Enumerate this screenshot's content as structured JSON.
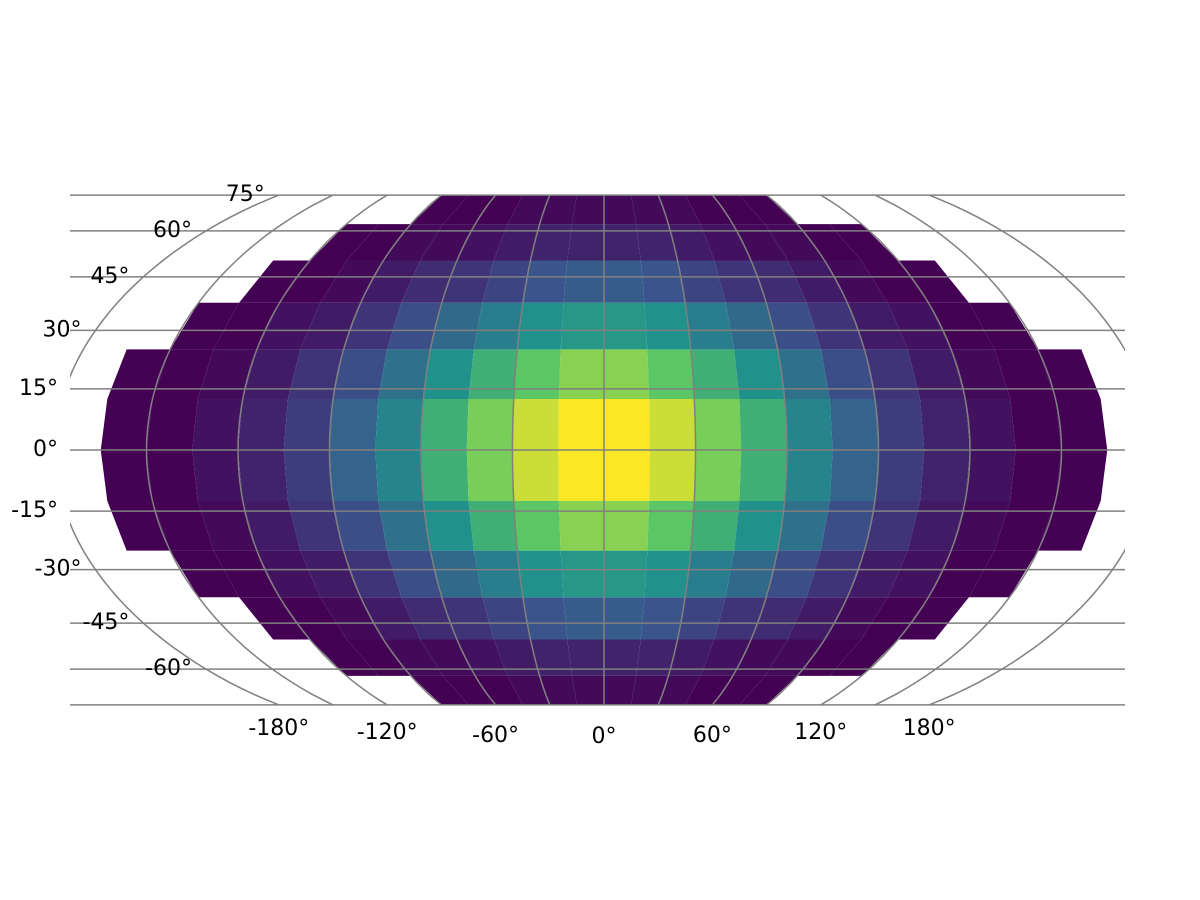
{
  "chart_data": {
    "type": "hist2d",
    "xticks": [
      {
        "value": -180,
        "label": "-180°"
      },
      {
        "value": -120,
        "label": "-120°"
      },
      {
        "value": -60,
        "label": "-60°"
      },
      {
        "value": 0,
        "label": "0°"
      },
      {
        "value": 60,
        "label": "60°"
      },
      {
        "value": 120,
        "label": "120°"
      },
      {
        "value": 180,
        "label": "180°"
      }
    ],
    "yticks": [
      {
        "value": -60,
        "label": "-60°"
      },
      {
        "value": -45,
        "label": "-45°"
      },
      {
        "value": -30,
        "label": "-30°"
      },
      {
        "value": -15,
        "label": "-15°"
      },
      {
        "value": 0,
        "label": "0°"
      },
      {
        "value": 15,
        "label": "15°"
      },
      {
        "value": 30,
        "label": "30°"
      },
      {
        "value": 45,
        "label": "45°"
      },
      {
        "value": 60,
        "label": "60°"
      },
      {
        "value": 75,
        "label": "75°"
      }
    ],
    "meridians": [
      -180,
      -150,
      -120,
      -90,
      -60,
      -30,
      0,
      30,
      60,
      90,
      120,
      150,
      180
    ],
    "ylim": [
      -75,
      75
    ],
    "grid": true,
    "grid_color": "#808080",
    "colormap": [
      "#440154",
      "#3b528b",
      "#21918c",
      "#5ec962",
      "#fde725"
    ],
    "clim": [
      1,
      39
    ],
    "lon_edges": [
      -180,
      -165,
      -150,
      -135,
      -120,
      -105,
      -90,
      -75,
      -60,
      -45,
      -30,
      -15,
      0,
      15,
      30,
      45,
      60,
      75,
      90,
      105,
      120,
      135,
      150,
      165,
      180
    ],
    "lat_edges": [
      -75,
      -62.5,
      -50,
      -37.5,
      -25,
      -12.5,
      0,
      12.5,
      25,
      37.5,
      50,
      62.5,
      75
    ],
    "counts": [
      [
        0,
        0,
        0,
        0,
        0,
        0,
        1,
        1,
        1,
        2,
        2,
        2,
        2,
        2,
        2,
        1,
        1,
        1,
        0,
        0,
        0,
        0,
        0,
        0
      ],
      [
        0,
        0,
        0,
        0,
        1,
        1,
        2,
        2,
        3,
        4,
        5,
        5,
        5,
        5,
        4,
        3,
        2,
        2,
        1,
        1,
        0,
        0,
        0,
        0
      ],
      [
        0,
        0,
        0,
        1,
        1,
        2,
        4,
        6,
        7,
        9,
        11,
        12,
        12,
        11,
        9,
        7,
        6,
        4,
        2,
        1,
        1,
        0,
        0,
        0
      ],
      [
        0,
        0,
        1,
        1,
        3,
        4,
        7,
        10,
        14,
        17,
        20,
        21,
        21,
        20,
        17,
        14,
        10,
        7,
        4,
        3,
        1,
        1,
        0,
        0
      ],
      [
        0,
        1,
        1,
        2,
        4,
        7,
        10,
        15,
        20,
        25,
        29,
        32,
        32,
        29,
        25,
        20,
        15,
        10,
        7,
        4,
        2,
        1,
        1,
        0
      ],
      [
        0,
        1,
        1,
        3,
        5,
        8,
        13,
        18,
        25,
        31,
        36,
        39,
        39,
        36,
        31,
        25,
        18,
        13,
        8,
        5,
        3,
        1,
        1,
        0
      ],
      [
        0,
        1,
        1,
        3,
        5,
        8,
        13,
        18,
        25,
        31,
        36,
        39,
        39,
        36,
        31,
        25,
        18,
        13,
        8,
        5,
        3,
        1,
        1,
        0
      ],
      [
        0,
        1,
        1,
        2,
        4,
        7,
        10,
        15,
        20,
        25,
        29,
        32,
        32,
        29,
        25,
        20,
        15,
        10,
        7,
        4,
        2,
        1,
        1,
        0
      ],
      [
        0,
        0,
        1,
        1,
        3,
        4,
        7,
        10,
        14,
        17,
        20,
        21,
        21,
        20,
        17,
        14,
        10,
        7,
        4,
        3,
        1,
        1,
        0,
        0
      ],
      [
        0,
        0,
        0,
        1,
        1,
        2,
        4,
        6,
        7,
        9,
        11,
        12,
        12,
        11,
        9,
        7,
        6,
        4,
        2,
        1,
        1,
        0,
        0,
        0
      ],
      [
        0,
        0,
        0,
        0,
        1,
        1,
        2,
        2,
        3,
        4,
        5,
        5,
        5,
        5,
        4,
        3,
        2,
        2,
        1,
        1,
        0,
        0,
        0,
        0
      ],
      [
        0,
        0,
        0,
        0,
        0,
        0,
        1,
        1,
        1,
        2,
        2,
        2,
        2,
        2,
        2,
        1,
        1,
        1,
        0,
        0,
        0,
        0,
        0,
        0
      ]
    ]
  }
}
